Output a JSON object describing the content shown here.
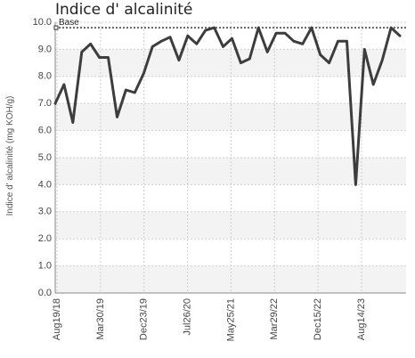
{
  "chart_data": {
    "type": "line",
    "title": "Indice d' alcalinité",
    "ylabel": "Indice d' alcalinité (mg KOH/g)",
    "xlabel": "",
    "ylim": [
      0,
      10
    ],
    "y_ticks": [
      "0.0",
      "1.0",
      "2.0",
      "3.0",
      "4.0",
      "5.0",
      "6.0",
      "7.0",
      "8.0",
      "9.0",
      "10.0"
    ],
    "x_ticks": [
      "Aug19/18",
      "Mar30/19",
      "Dec23/19",
      "Jul26/20",
      "May25/21",
      "Mar29/22",
      "Dec15/22",
      "Aug14/23"
    ],
    "grid": true,
    "series": [
      {
        "values": [
          7.0,
          7.7,
          6.3,
          8.9,
          9.2,
          8.7,
          8.7,
          6.5,
          7.5,
          7.4,
          8.1,
          9.1,
          9.3,
          9.45,
          8.6,
          9.5,
          9.2,
          9.7,
          9.8,
          9.1,
          9.4,
          8.5,
          8.65,
          9.8,
          8.9,
          9.6,
          9.6,
          9.3,
          9.2,
          9.8,
          8.8,
          8.5,
          9.3,
          9.3,
          4.0,
          9.0,
          7.7,
          8.6,
          9.8,
          9.5
        ],
        "color": "#3d3d3d"
      }
    ],
    "annotations": [
      {
        "label": "Base",
        "value": 9.8
      }
    ]
  }
}
